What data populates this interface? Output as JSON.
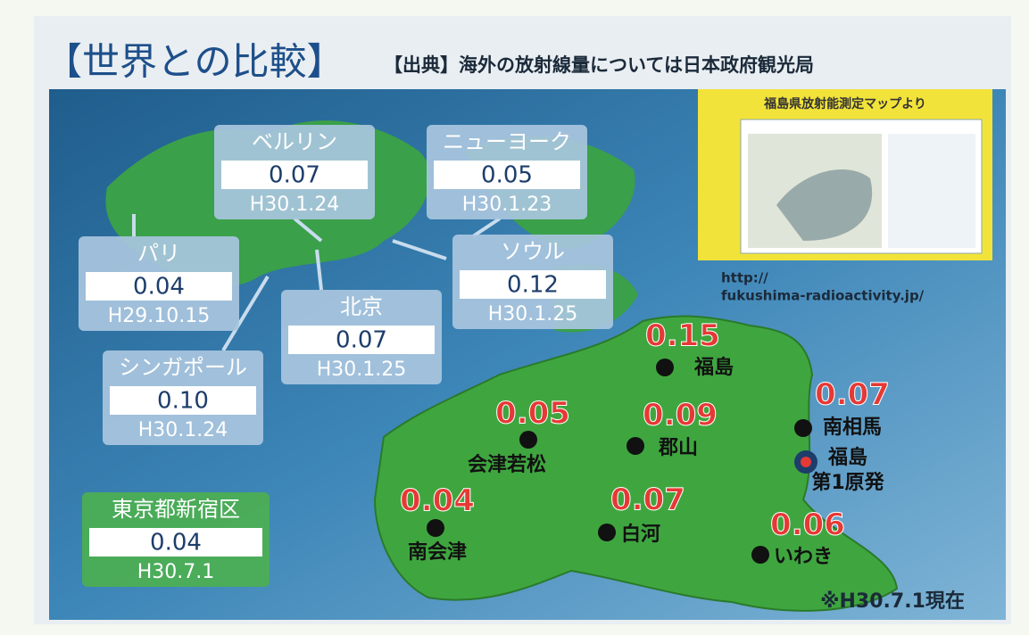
{
  "header": {
    "title": "【世界との比較】",
    "source": "【出典】海外の放射線量については日本政府観光局"
  },
  "inset": {
    "caption": "福島県放射能測定マップより",
    "url_lines": [
      "http://",
      "fukushima-radioactivity.jp/"
    ]
  },
  "cities": [
    {
      "name": "ベルリン",
      "value": "0.07",
      "date": "H30.1.24"
    },
    {
      "name": "ニューヨーク",
      "value": "0.05",
      "date": "H30.1.23"
    },
    {
      "name": "パリ",
      "value": "0.04",
      "date": "H29.10.15"
    },
    {
      "name": "ソウル",
      "value": "0.12",
      "date": "H30.1.25"
    },
    {
      "name": "北京",
      "value": "0.07",
      "date": "H30.1.25"
    },
    {
      "name": "シンガポール",
      "value": "0.10",
      "date": "H30.1.24"
    }
  ],
  "tokyo": {
    "name": "東京都新宿区",
    "value": "0.04",
    "date": "H30.7.1"
  },
  "points": [
    {
      "name_lines": [
        "福島"
      ],
      "value": "0.15"
    },
    {
      "name_lines": [
        "南相馬"
      ],
      "value": "0.07"
    },
    {
      "name_lines": [
        "福島",
        "第1原発"
      ]
    },
    {
      "name_lines": [
        "郡山"
      ],
      "value": "0.09"
    },
    {
      "name_lines": [
        "会津若松"
      ],
      "value": "0.05"
    },
    {
      "name_lines": [
        "南会津"
      ],
      "value": "0.04"
    },
    {
      "name_lines": [
        "白河"
      ],
      "value": "0.07"
    },
    {
      "name_lines": [
        "いわき"
      ],
      "value": "0.06"
    }
  ],
  "note": "※H30.7.1現在"
}
